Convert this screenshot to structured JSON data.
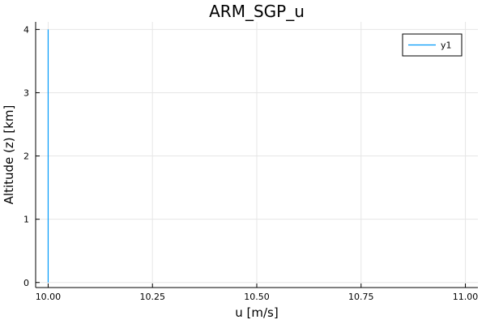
{
  "chart_data": {
    "type": "line",
    "title": "ARM_SGP_u",
    "xlabel": "u [m/s]",
    "ylabel": "Altitude (z) [km]",
    "xlim": [
      9.97,
      11.03
    ],
    "ylim": [
      -0.08,
      4.12
    ],
    "xticks": [
      10.0,
      10.25,
      10.5,
      10.75,
      11.0
    ],
    "xtick_labels": [
      "10.00",
      "10.25",
      "10.50",
      "10.75",
      "11.00"
    ],
    "yticks": [
      0,
      1,
      2,
      3,
      4
    ],
    "ytick_labels": [
      "0",
      "1",
      "2",
      "3",
      "4"
    ],
    "grid": true,
    "legend": "top-right",
    "series": [
      {
        "name": "y1",
        "color": "#009AFA",
        "x": [
          10.0,
          10.0,
          10.0,
          10.0,
          10.0
        ],
        "y": [
          0,
          1,
          2,
          3,
          4
        ]
      }
    ]
  }
}
